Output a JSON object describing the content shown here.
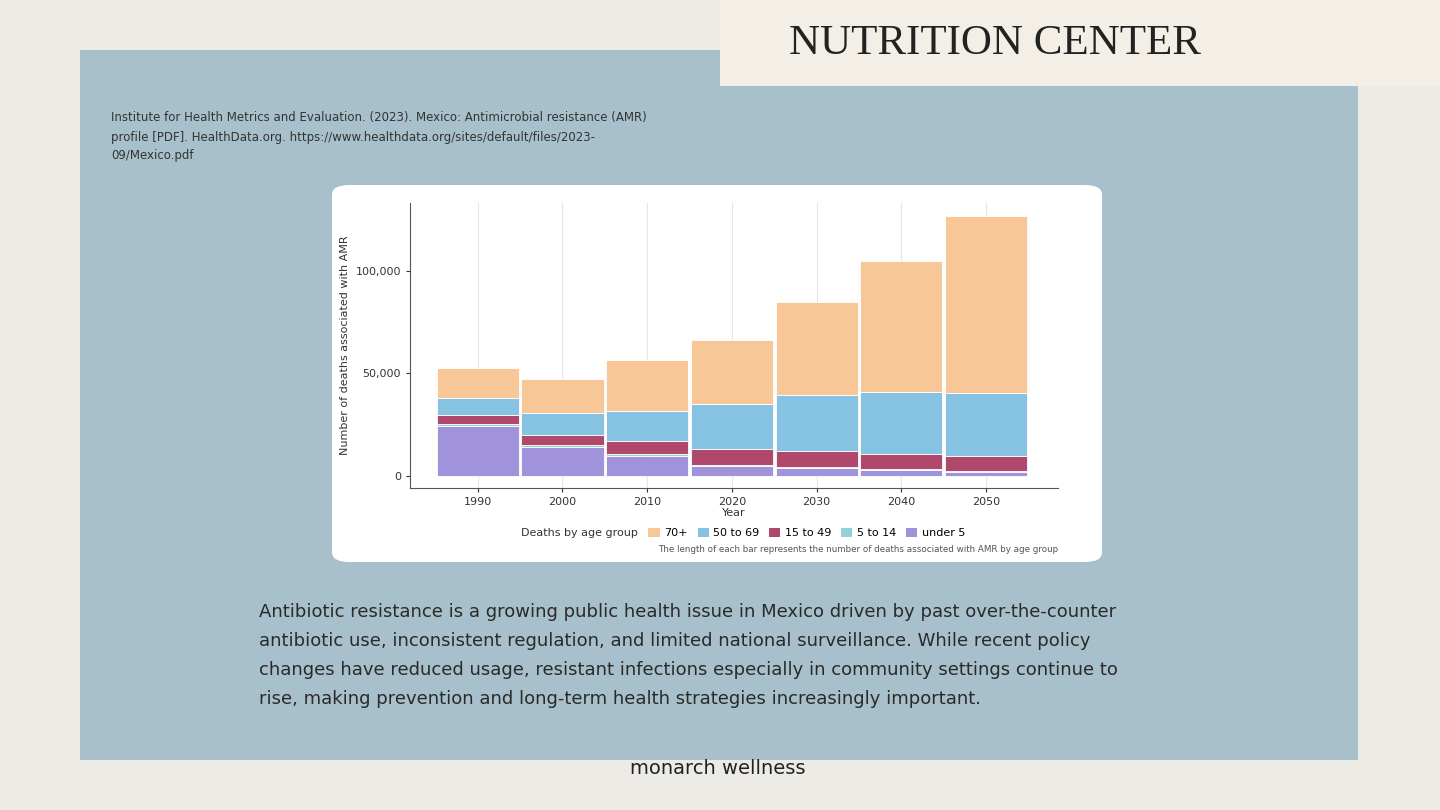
{
  "header": {
    "title": "NUTRITION CENTER"
  },
  "citation": [
    "Institute for Health Metrics and Evaluation. (2023). Mexico: Antimicrobial resistance (AMR)",
    "profile [PDF]. HealthData.org. https://www.healthdata.org/sites/default/files/2023-",
    "09/Mexico.pdf"
  ],
  "chart_data": {
    "type": "bar",
    "stacked": true,
    "grid": true,
    "legend": "bottom",
    "x": [
      1990,
      2000,
      2010,
      2020,
      2030,
      2040,
      2050
    ],
    "xlim": [
      1982,
      2058.5
    ],
    "xticks": [
      1990,
      2000,
      2010,
      2020,
      2030,
      2040,
      2050
    ],
    "ylim": [
      -6000,
      133000
    ],
    "yticks": [
      0,
      {
        "value": 50000,
        "label": "50,000"
      },
      {
        "value": 100000,
        "label": "100,000"
      }
    ],
    "xlabel": "Year",
    "ylabel": "Number of deaths associated with AMR",
    "legend_title": "Deaths by age group",
    "note": "The length of each bar represents the number of deaths associated with AMR by age group",
    "series": [
      {
        "name": "70+",
        "color": "#f8c797",
        "values": [
          14600,
          16600,
          24900,
          31200,
          45400,
          63900,
          86300
        ]
      },
      {
        "name": "50 to 69",
        "color": "#86c3e2",
        "values": [
          8300,
          10700,
          14600,
          21900,
          27300,
          30300,
          30700
        ]
      },
      {
        "name": "15 to 49",
        "color": "#b0486b",
        "values": [
          4800,
          5000,
          6700,
          7800,
          7900,
          7500,
          7500
        ]
      },
      {
        "name": "5 to 14",
        "color": "#8fd3d8",
        "values": [
          1000,
          900,
          600,
          500,
          400,
          300,
          300
        ]
      },
      {
        "name": "under 5",
        "color": "#a093dc",
        "values": [
          24000,
          14100,
          9800,
          4900,
          3900,
          2900,
          2000
        ]
      }
    ]
  },
  "body": [
    "Antibiotic resistance is a growing public health issue in Mexico driven by past over-the-counter",
    "antibiotic use, inconsistent regulation, and limited national surveillance. While recent policy",
    "changes have reduced usage, resistant infections especially in community settings continue to",
    "rise, making prevention and long-term health strategies increasingly important."
  ],
  "footer": "monarch wellness"
}
